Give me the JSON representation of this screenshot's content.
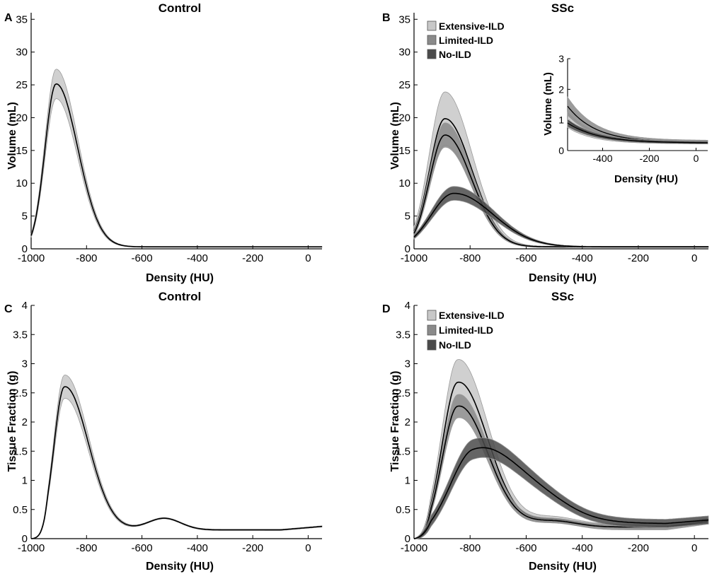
{
  "colors": {
    "extensive": "#c8c8c8",
    "limited": "#8a8a8a",
    "no_ild": "#4a4a4a",
    "line": "#000000",
    "band_edge": "#9a9a9a"
  },
  "chart_data": [
    {
      "id": "A",
      "letter": "A",
      "type": "line",
      "title": "Control",
      "xlabel": "Density (HU)",
      "ylabel": "Volume (mL)",
      "xlim": [
        -1000,
        50
      ],
      "ylim": [
        0,
        36
      ],
      "xticks": [
        -1000,
        -800,
        -600,
        -400,
        -200,
        0
      ],
      "xtick_labels": [
        "-1000",
        "-800",
        "-600",
        "-400",
        "-200",
        "0"
      ],
      "yticks": [
        0,
        5,
        10,
        15,
        20,
        25,
        30,
        35
      ],
      "ytick_labels": [
        "0",
        "5",
        "10",
        "15",
        "20",
        "25",
        "30",
        "35"
      ],
      "legend": null,
      "series": [
        {
          "name": "Control",
          "color_key": "extensive",
          "peak": 25,
          "peak_x": -910,
          "band_peak": 2.2,
          "w_left": 40,
          "w_right": 78,
          "tail": 0.3,
          "band_tail": 0.05,
          "start_frac": 0.2
        }
      ]
    },
    {
      "id": "B",
      "letter": "B",
      "type": "line",
      "title": "SSc",
      "xlabel": "Density (HU)",
      "ylabel": "Volume (mL)",
      "xlim": [
        -1000,
        50
      ],
      "ylim": [
        0,
        36
      ],
      "xticks": [
        -1000,
        -800,
        -600,
        -400,
        -200,
        0
      ],
      "xtick_labels": [
        "-1000",
        "-800",
        "-600",
        "-400",
        "-200",
        "0"
      ],
      "yticks": [
        0,
        5,
        10,
        15,
        20,
        25,
        30,
        35
      ],
      "ytick_labels": [
        "0",
        "5",
        "10",
        "15",
        "20",
        "25",
        "30",
        "35"
      ],
      "legend": {
        "placement": "top-left",
        "entries": [
          {
            "label": "Extensive-ILD",
            "color_key": "extensive"
          },
          {
            "label": "Limited-ILD",
            "color_key": "limited"
          },
          {
            "label": "No-ILD",
            "color_key": "no_ild"
          }
        ]
      },
      "series": [
        {
          "name": "Extensive-ILD",
          "color_key": "extensive",
          "peak": 19.7,
          "peak_x": -890,
          "band_peak": 4.0,
          "w_left": 55,
          "w_right": 95,
          "tail": 0.3,
          "band_tail": 0.08,
          "start_frac": 0.32
        },
        {
          "name": "Limited-ILD",
          "color_key": "limited",
          "peak": 17.2,
          "peak_x": -890,
          "band_peak": 1.8,
          "w_left": 55,
          "w_right": 95,
          "tail": 0.3,
          "band_tail": 0.06,
          "start_frac": 0.35
        },
        {
          "name": "No-ILD",
          "color_key": "no_ild",
          "peak": 8.3,
          "peak_x": -860,
          "band_peak": 1.0,
          "w_left": 80,
          "w_right": 140,
          "tail": 0.3,
          "band_tail": 0.06,
          "start_frac": 0.4
        }
      ],
      "inset": {
        "placement": "upper-right",
        "xlabel": "Density (HU)",
        "ylabel": "Volume (mL)",
        "xlim": [
          -550,
          50
        ],
        "ylim": [
          0,
          3
        ],
        "xticks": [
          -400,
          -200,
          0
        ],
        "xtick_labels": [
          "-400",
          "-200",
          "0"
        ],
        "yticks": [
          0,
          1,
          2,
          3
        ],
        "ytick_labels": [
          "0",
          "1",
          "2",
          "3"
        ],
        "series": [
          {
            "name": "Extensive-ILD",
            "color_key": "extensive",
            "start": 1.0,
            "end": 0.27,
            "decay": 110,
            "band_start": 0.25,
            "band_end": 0.05
          },
          {
            "name": "Limited-ILD",
            "color_key": "limited",
            "start": 1.45,
            "end": 0.27,
            "decay": 120,
            "band_start": 0.3,
            "band_end": 0.06
          },
          {
            "name": "No-ILD",
            "color_key": "no_ild",
            "start": 0.9,
            "end": 0.25,
            "decay": 130,
            "band_start": 0.12,
            "band_end": 0.04
          }
        ]
      }
    },
    {
      "id": "C",
      "letter": "C",
      "type": "line",
      "title": "Control",
      "xlabel": "Density (HU)",
      "ylabel": "Tissue Fraction (g)",
      "xlim": [
        -1000,
        50
      ],
      "ylim": [
        0,
        4
      ],
      "xticks": [
        -1000,
        -800,
        -600,
        -400,
        -200,
        0
      ],
      "xtick_labels": [
        "-1000",
        "-800",
        "-600",
        "-400",
        "-200",
        "0"
      ],
      "yticks": [
        0,
        0.5,
        1,
        1.5,
        2,
        2.5,
        3,
        3.5,
        4
      ],
      "ytick_labels": [
        "0",
        "0.5",
        "1",
        "1.5",
        "2",
        "2.5",
        "3",
        "3.5",
        "4"
      ],
      "legend": null,
      "series": [
        {
          "name": "Control",
          "color_key": "extensive",
          "peak": 2.53,
          "peak_x": -880,
          "band_peak": 0.19,
          "w_left": 38,
          "w_right": 85,
          "tail": 0.15,
          "band_tail": 0.01,
          "start_frac": 0.0,
          "bump": 0.2,
          "bump_x": -520,
          "bump_w": 60,
          "end_rise": 0.06
        }
      ]
    },
    {
      "id": "D",
      "letter": "D",
      "type": "line",
      "title": "SSc",
      "xlabel": "Density (HU)",
      "ylabel": "Tissue Fraction (g)",
      "xlim": [
        -1000,
        50
      ],
      "ylim": [
        0,
        4
      ],
      "xticks": [
        -1000,
        -800,
        -600,
        -400,
        -200,
        0
      ],
      "xtick_labels": [
        "-1000",
        "-800",
        "-600",
        "-400",
        "-200",
        "0"
      ],
      "yticks": [
        0,
        0.5,
        1,
        1.5,
        2,
        2.5,
        3,
        3.5,
        4
      ],
      "ytick_labels": [
        "0",
        "0.5",
        "1",
        "1.5",
        "2",
        "2.5",
        "3",
        "3.5",
        "4"
      ],
      "legend": {
        "placement": "top-left",
        "entries": [
          {
            "label": "Extensive-ILD",
            "color_key": "extensive"
          },
          {
            "label": "Limited-ILD",
            "color_key": "limited"
          },
          {
            "label": "No-ILD",
            "color_key": "no_ild"
          }
        ]
      },
      "series": [
        {
          "name": "Extensive-ILD",
          "color_key": "extensive",
          "peak": 2.58,
          "peak_x": -845,
          "band_peak": 0.34,
          "w_left": 55,
          "w_right": 105,
          "tail": 0.2,
          "band_tail": 0.05,
          "start_frac": 0.0,
          "bump": 0.12,
          "bump_x": -500,
          "bump_w": 80,
          "end_rise": 0.1
        },
        {
          "name": "Limited-ILD",
          "color_key": "limited",
          "peak": 2.17,
          "peak_x": -845,
          "band_peak": 0.16,
          "w_left": 55,
          "w_right": 105,
          "tail": 0.2,
          "band_tail": 0.04,
          "start_frac": 0.0,
          "bump": 0.1,
          "bump_x": -500,
          "bump_w": 80,
          "end_rise": 0.1
        },
        {
          "name": "No-ILD",
          "color_key": "no_ild",
          "peak": 1.4,
          "peak_x": -790,
          "band_peak": 0.1,
          "w_left": 85,
          "w_right": 190,
          "tail": 0.26,
          "band_tail": 0.07,
          "start_frac": 0.0,
          "bump": 0.05,
          "bump_x": -500,
          "bump_w": 80,
          "end_rise": 0.06
        }
      ]
    }
  ]
}
